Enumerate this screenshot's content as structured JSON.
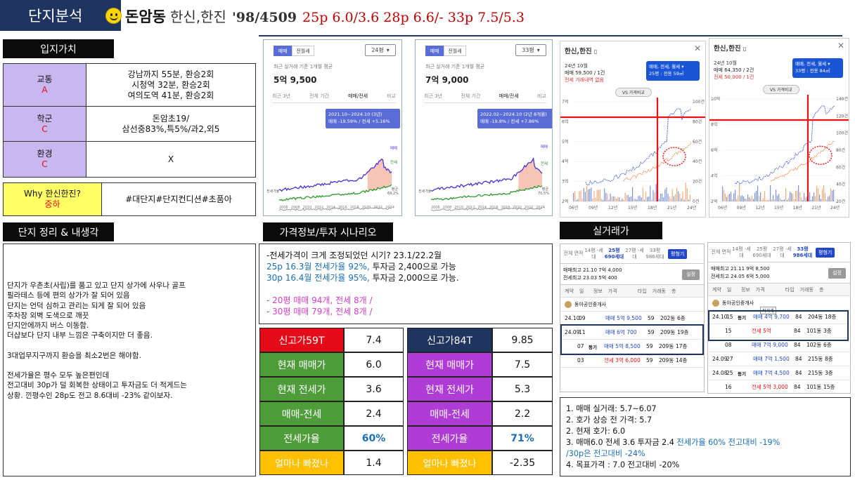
{
  "header": {
    "tag": "단지분석",
    "name": "돈암동",
    "apt": "한신,한진",
    "year_units": "'98/4509",
    "prices": "25p 6.0/3.6 28p 6.6/- 33p 7.5/5.3"
  },
  "location": {
    "title": "입지가치",
    "rows": [
      {
        "label": "교통",
        "grade": "A",
        "value": [
          "강남까지 55분, 환승2회",
          "시청역 32분, 환승2회",
          "여의도역 41분, 환승2회"
        ]
      },
      {
        "label": "학군",
        "grade": "C",
        "value": [
          "돈암초19/",
          "삼선중83%,특5%/과2,외5"
        ]
      },
      {
        "label": "환경",
        "grade": "C",
        "value": [
          "X"
        ]
      }
    ],
    "why": {
      "label": "Why 한신한진?",
      "grade": "중하",
      "value": "#대단지#단지컨디션#초품아"
    }
  },
  "summary": {
    "title": "단지 정리 & 내생각",
    "lines": [
      "단지가 우촌초(사립)를 품고 있고 단지 상가에 사우나 골프",
      "필라테스 등에 편의 상가가 잘 되어 있음",
      "단지는 언덕 심하고 관리는 되게 잘 되어 있음",
      "주차장 외벽 도색으로 깨끗",
      "단지안에까지 버스 이동함.",
      "더샵보다 단지 내부 느낌은 구축이지만 더 좋음.",
      "",
      "3대업무지구까지 환승을 최소2번은 해야함.",
      "",
      "전세가율은 평수 모두 높은편인데",
      "전고대비 30p가 덜 회복한 상태이고 투자금도 더 적게드는",
      "상황. 낀평수인 28p도 전고 8.6대비 -23% 같이보자."
    ]
  },
  "scenario": {
    "title": "가격정보/투자 시나리오",
    "line1": "-전세가격이 크게 조정되었던 시기? 23.1/22.2월",
    "line2": "25p 16.3월 전세가율 92%,",
    "line2b": " 투자금 2,400으로 가능",
    "line3": "30p 16.4월 전세가율 95%,",
    "line3b": " 투자금 2,000으로 가능.",
    "line4": "-   20평 매매 94개, 전세 8개 /",
    "line5": "-   30평 매매 79개, 전세 8개 /"
  },
  "price_table_left": [
    {
      "label": "신고가59T",
      "value": "7.4"
    },
    {
      "label": "현재 매매가",
      "value": "6.0"
    },
    {
      "label": "현재 전세가",
      "value": "3.6"
    },
    {
      "label": "매매-전세",
      "value": "2.4"
    },
    {
      "label": "전세가율",
      "value": "60%"
    },
    {
      "label": "얼마나 빠졌나",
      "value": "1.4"
    }
  ],
  "price_table_right": [
    {
      "label": "신고가84T",
      "value": "9.85"
    },
    {
      "label": "현재 매매가",
      "value": "7.5"
    },
    {
      "label": "현재 전세가",
      "value": "5.3"
    },
    {
      "label": "매매-전세",
      "value": "2.2"
    },
    {
      "label": "전세가율",
      "value": "71%"
    },
    {
      "label": "얼마나 빠졌나",
      "value": "-2.35"
    }
  ],
  "charts": [
    {
      "tab1": "매매",
      "tab2": "전월세",
      "size": "24평",
      "subtitle": "최근 실거래 기준 1개월 평균",
      "price": "5억 9,500",
      "periods": [
        "최근 3년",
        "전체 기간",
        "매매/전세",
        "비교"
      ],
      "tip1": "2021.10~2024.10 (3년)",
      "tip2": "매매 -19.59% / 전세 +5.16%",
      "years": [
        "2006",
        "2008",
        "2010",
        "2012",
        "2014",
        "2016",
        "2018",
        "2020",
        "2022",
        "2024"
      ],
      "sale_label": "매매",
      "rent_label": "전세",
      "ratio_label": "전세가율",
      "ratio_value": "69.2%",
      "ratio_title": "평균"
    },
    {
      "tab1": "매매",
      "tab2": "전월세",
      "size": "33평",
      "subtitle": "최근 실거래 기준 1개월 평균",
      "price": "7억 9,000",
      "periods": [
        "최근 3년",
        "전체 기간",
        "매매/전세",
        "비교"
      ],
      "tip1": "2022.02~2024.10 (2년 8개월)",
      "tip2": "매매 -19.8% / 전세 +7.86%",
      "years": [
        "2006",
        "2008",
        "2010",
        "2012",
        "2014",
        "2016",
        "2018",
        "2020",
        "2022",
        "2024"
      ],
      "sale_label": "매매",
      "rent_label": "전세",
      "ratio_label": "전세가율",
      "ratio_value": "70.5%",
      "ratio_title": "평균"
    }
  ],
  "trend_charts": [
    {
      "title": "한신,한진",
      "month": "24년 10월",
      "sale": "매매 59,500 / 1건",
      "rent": "전세 거래내역 없음",
      "pill1": "매매, 전세, 월세",
      "pill2": "25평 : 전용 59㎡",
      "vs": "VS 가격비교",
      "left_axis": [
        "7억",
        "6억",
        "5억",
        "4억",
        "3억",
        "2억"
      ],
      "right_axis": [
        "100건",
        "80건",
        "60건",
        "40건",
        "20건",
        "0건"
      ],
      "years": [
        "06년",
        "09년",
        "12년",
        "15년",
        "18년",
        "21년",
        "24년"
      ]
    },
    {
      "title": "한신,한진",
      "month": "24년 10월",
      "sale": "매매 64,350 / 2건",
      "rent": "전세 50,000 / 1건",
      "pill1": "매매, 전세, 월세",
      "pill2": "33평 : 전용 84㎡",
      "vs": "VS 가격비교",
      "left_axis": [
        "10억",
        "8억",
        "6억",
        "4억",
        "2억"
      ],
      "right_axis": [
        "140건",
        "120건",
        "100건",
        "80건",
        "60건",
        "40건",
        "20건"
      ],
      "years": [
        "06년",
        "09년",
        "12년",
        "15년",
        "18년",
        "21년",
        "24년"
      ]
    }
  ],
  "real_trade": {
    "title": "실거래가",
    "left": {
      "header": [
        "전체 면적",
        "14평 -세대",
        "25평 690세대",
        "27평 -세대",
        "33평 986세대"
      ],
      "btn": "평형기",
      "max1": "매매최고 21.10 7억 4,000",
      "max2": "전세최고 23.03 5억 400",
      "setting": "설정",
      "cols": [
        "계약",
        "일",
        "정보",
        "가격",
        "타입",
        "거래동",
        "층"
      ],
      "agent": "동아공인중개사",
      "rows": [
        {
          "month": "24.10",
          "day": "09",
          "info": "",
          "price": "매매 5억 9,500",
          "type": "59",
          "dong": "202동",
          "floor": "6층",
          "kind": "sale"
        },
        {
          "month": "24.09",
          "day": "11",
          "info": "",
          "price": "매매 6억 700",
          "type": "59",
          "dong": "209동",
          "floor": "19층",
          "kind": "sale"
        },
        {
          "month": "",
          "day": "07",
          "info": "등기",
          "price": "매매 5억 8,500",
          "type": "59",
          "dong": "209동",
          "floor": "17층",
          "kind": "sale"
        },
        {
          "month": "",
          "day": "03",
          "info": "",
          "price": "전세 3억 6,000",
          "type": "59",
          "dong": "209동",
          "floor": "14층",
          "kind": "rent"
        }
      ]
    },
    "right": {
      "header": [
        "전체 면적",
        "14평 -세대",
        "25평 690세대",
        "27평 -세대",
        "33평 986세대"
      ],
      "btn": "평형기",
      "max1": "매매최고 21.11 9억 8,500",
      "max2": "전세최고 24.05 6억 5,000",
      "setting": "설정",
      "cols": [
        "계약",
        "일",
        "정보",
        "가격",
        "타입",
        "거래동",
        "층"
      ],
      "agent": "동아공인중개사",
      "rows": [
        {
          "month": "24.10",
          "day": "15",
          "info": "등기",
          "price": "매매 4억 9,700",
          "type": "84",
          "dong": "204동",
          "floor": "18층",
          "kind": "sale",
          "tag": "직거래"
        },
        {
          "month": "",
          "day": "15",
          "info": "",
          "price": "전세 5억",
          "type": "84",
          "dong": "101동",
          "floor": "3층",
          "kind": "rent"
        },
        {
          "month": "",
          "day": "08",
          "info": "",
          "price": "매매 7억 9,000",
          "type": "84",
          "dong": "102동",
          "floor": "6층",
          "kind": "sale"
        },
        {
          "month": "24.09",
          "day": "27",
          "info": "",
          "price": "매매 7억 1,500",
          "type": "84",
          "dong": "215동",
          "floor": "8층",
          "kind": "sale"
        },
        {
          "month": "24.08",
          "day": "25",
          "info": "등기",
          "price": "매매 7억 4,500",
          "type": "84",
          "dong": "215동",
          "floor": "3층",
          "kind": "sale"
        },
        {
          "month": "",
          "day": "16",
          "info": "",
          "price": "전세 5억 3,000",
          "type": "84",
          "dong": "101동",
          "floor": "15층",
          "kind": "rent"
        }
      ]
    }
  },
  "conclusion": {
    "l1": "1. 매매 실거래: 5.7~6.07",
    "l2": "2. 호가 상승 전 가격: 5.7",
    "l3": "2. 현재 호가: 6.0",
    "l4a": "3. 매매6.0 전세 3.6 투자금 2.4 ",
    "l4b": "전세가율 60%  전고대비 -19%",
    "l5": "/30p은 전고대비 -24%",
    "l6": "4. 목표가격 : 7.0 전고대비 -20%"
  },
  "colors": {
    "navy": "#1f3560",
    "lavender": "#c9b8f0",
    "yellow": "#ffff66",
    "red": "#e50c1a",
    "green": "#4f9d3a",
    "purple": "#b03cd6",
    "orange": "#ffc000",
    "blue_text": "#1b6fb5",
    "pink_text": "#d43fc4"
  }
}
